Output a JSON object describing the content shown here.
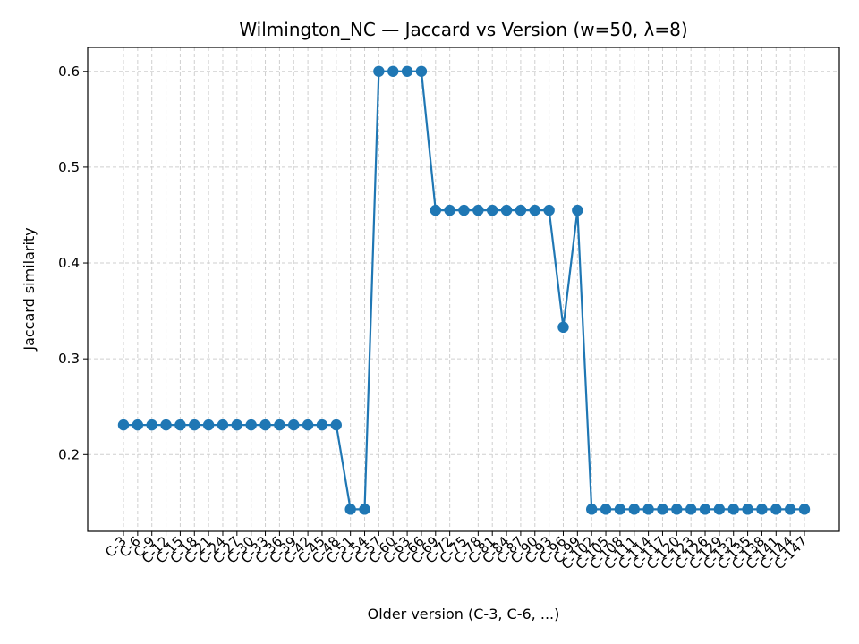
{
  "chart_data": {
    "type": "line",
    "title": "Wilmington_NC — Jaccard vs Version (w=50, λ=8)",
    "xlabel": "Older version (C-3, C-6, ...)",
    "ylabel": "Jaccard similarity",
    "ylim": [
      0.12,
      0.625
    ],
    "yticks": [
      0.2,
      0.3,
      0.4,
      0.5,
      0.6
    ],
    "ytick_labels": [
      "0.2",
      "0.3",
      "0.4",
      "0.5",
      "0.6"
    ],
    "grid": true,
    "line_color": "#1f77b4",
    "categories": [
      "C-3",
      "C-6",
      "C-9",
      "C-12",
      "C-15",
      "C-18",
      "C-21",
      "C-24",
      "C-27",
      "C-30",
      "C-33",
      "C-36",
      "C-39",
      "C-42",
      "C-45",
      "C-48",
      "C-51",
      "C-54",
      "C-57",
      "C-60",
      "C-63",
      "C-66",
      "C-69",
      "C-72",
      "C-75",
      "C-78",
      "C-81",
      "C-84",
      "C-87",
      "C-90",
      "C-93",
      "C-96",
      "C-99",
      "C-102",
      "C-105",
      "C-108",
      "C-111",
      "C-114",
      "C-117",
      "C-120",
      "C-123",
      "C-126",
      "C-129",
      "C-132",
      "C-135",
      "C-138",
      "C-141",
      "C-144",
      "C-147"
    ],
    "series": [
      {
        "values": [
          0.231,
          0.231,
          0.231,
          0.231,
          0.231,
          0.231,
          0.231,
          0.231,
          0.231,
          0.231,
          0.231,
          0.231,
          0.231,
          0.231,
          0.231,
          0.231,
          0.143,
          0.143,
          0.6,
          0.6,
          0.6,
          0.6,
          0.455,
          0.455,
          0.455,
          0.455,
          0.455,
          0.455,
          0.455,
          0.455,
          0.455,
          0.333,
          0.455,
          0.143,
          0.143,
          0.143,
          0.143,
          0.143,
          0.143,
          0.143,
          0.143,
          0.143,
          0.143,
          0.143,
          0.143,
          0.143,
          0.143,
          0.143,
          0.143
        ]
      }
    ]
  }
}
